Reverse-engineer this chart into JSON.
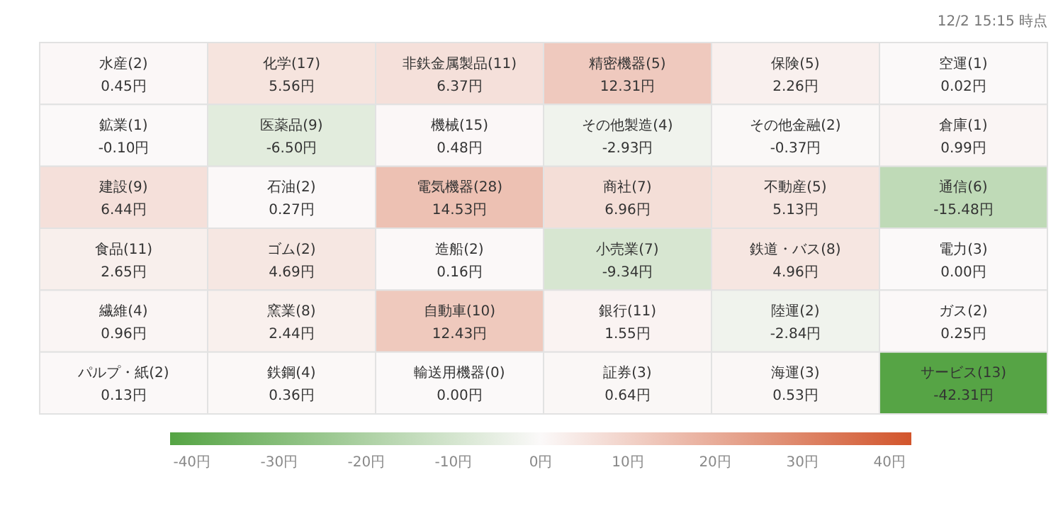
{
  "chart_data": {
    "type": "heatmap",
    "annotations": [
      "12/2 15:15 時点"
    ],
    "categories": [
      null,
      null,
      null,
      null,
      null,
      null
    ],
    "y_categories": [
      null,
      null,
      null,
      null,
      null,
      null
    ],
    "cells": [
      [
        0.45,
        5.56,
        6.37,
        12.31,
        2.26,
        0.02
      ],
      [
        -0.1,
        -6.5,
        0.48,
        -2.93,
        -0.37,
        0.99
      ],
      [
        6.44,
        0.27,
        14.53,
        6.96,
        5.13,
        -15.48
      ],
      [
        2.65,
        4.69,
        0.16,
        -9.34,
        4.96,
        0.0
      ],
      [
        0.96,
        2.44,
        12.43,
        1.55,
        -2.84,
        0.25
      ],
      [
        0.13,
        0.36,
        0.0,
        0.64,
        0.53,
        -42.31
      ]
    ],
    "cell_labels": [
      [
        "水産(2)\n0.45円",
        "化学(17)\n5.56円",
        "非鉄金属製品(11)\n6.37円",
        "精密機器(5)\n12.31円",
        "保険(5)\n2.26円",
        "空運(1)\n0.02円"
      ],
      [
        "鉱業(1)\n-0.10円",
        "医薬品(9)\n-6.50円",
        "機械(15)\n0.48円",
        "その他製造(4)\n-2.93円",
        "その他金融(2)\n-0.37円",
        "倉庫(1)\n0.99円"
      ],
      [
        "建設(9)\n6.44円",
        "石油(2)\n0.27円",
        "電気機器(28)\n14.53円",
        "商社(7)\n6.96円",
        "不動産(5)\n5.13円",
        "通信(6)\n-15.48円"
      ],
      [
        "食品(11)\n2.65円",
        "ゴム(2)\n4.69円",
        "造船(2)\n0.16円",
        "小売業(7)\n-9.34円",
        "鉄道・バス(8)\n4.96円",
        "電力(3)\n0.00円"
      ],
      [
        "繊維(4)\n0.96円",
        "窯業(8)\n2.44円",
        "自動車(10)\n12.43円",
        "銀行(11)\n1.55円",
        "陸運(2)\n-2.84円",
        "ガス(2)\n0.25円"
      ],
      [
        "パルプ・紙(2)\n0.13円",
        "鉄鋼(4)\n0.36円",
        "輸送用機器(0)\n0.00円",
        "証券(3)\n0.64円",
        "海運(3)\n0.53円",
        "サービス(13)\n-42.31円"
      ]
    ],
    "clim": [
      -42.5,
      42.5
    ],
    "cticks": [
      {
        "value": -40,
        "label": "-40円"
      },
      {
        "value": -30,
        "label": "-30円"
      },
      {
        "value": -20,
        "label": "-20円"
      },
      {
        "value": -10,
        "label": "-10円"
      },
      {
        "value": 0,
        "label": "0円"
      },
      {
        "value": 10,
        "label": "10円"
      },
      {
        "value": 20,
        "label": "20円"
      },
      {
        "value": 30,
        "label": "30円"
      },
      {
        "value": 40,
        "label": "40円"
      }
    ]
  }
}
